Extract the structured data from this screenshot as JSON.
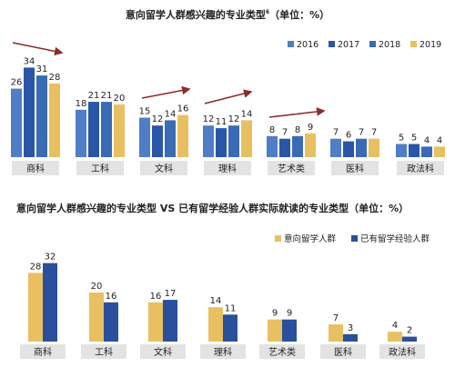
{
  "colors": {
    "c2016": "#4f7ec6",
    "c2017": "#2a56a8",
    "c2018": "#3a6bb5",
    "c2019": "#e8c062",
    "intend": "#e8c062",
    "experienced": "#2a4f9c",
    "arrow": "#8e2b2b",
    "catBox": "#e3e3e3"
  },
  "chart_data": [
    {
      "type": "bar",
      "title": "意向留学人群感兴趣的专业类型",
      "title_sup": "6",
      "title_suffix": "（单位：%）",
      "categories": [
        "商科",
        "工科",
        "文科",
        "理科",
        "艺术类",
        "医科",
        "政法科"
      ],
      "series": [
        {
          "name": "2016",
          "values": [
            26,
            18,
            15,
            12,
            8,
            7,
            5
          ]
        },
        {
          "name": "2017",
          "values": [
            34,
            21,
            12,
            11,
            7,
            6,
            5
          ]
        },
        {
          "name": "2018",
          "values": [
            31,
            21,
            14,
            12,
            8,
            7,
            4
          ]
        },
        {
          "name": "2019",
          "values": [
            28,
            20,
            16,
            14,
            9,
            7,
            4
          ]
        }
      ],
      "legend_position": "top-right",
      "ylim": [
        0,
        36
      ]
    },
    {
      "type": "bar",
      "title": "意向留学人群感兴趣的专业类型 VS 已有留学经验人群实际就读的专业类型（单位：%）",
      "categories": [
        "商科",
        "工科",
        "文科",
        "理科",
        "艺术类",
        "医科",
        "政法科"
      ],
      "series": [
        {
          "name": "意向留学人群",
          "values": [
            28,
            20,
            16,
            14,
            9,
            7,
            4
          ]
        },
        {
          "name": "已有留学经验人群",
          "values": [
            32,
            16,
            17,
            11,
            9,
            3,
            2
          ]
        }
      ],
      "legend_position": "top-right",
      "ylim": [
        0,
        33
      ]
    }
  ]
}
